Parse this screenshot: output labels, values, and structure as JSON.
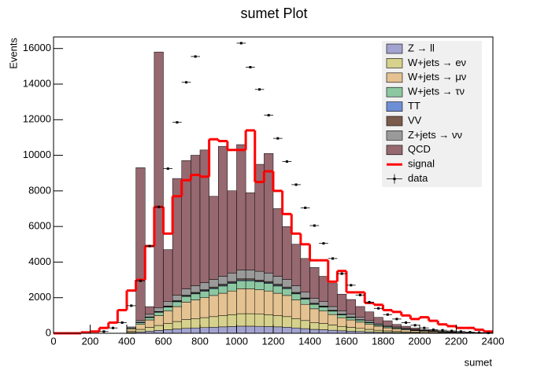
{
  "chart_data": {
    "type": "stacked-histogram",
    "title": "sumet Plot",
    "x_label": "sumet",
    "y_label": "Events",
    "bins": [
      0,
      50,
      100,
      150,
      200,
      250,
      300,
      350,
      400,
      450,
      500,
      550,
      600,
      650,
      700,
      750,
      800,
      850,
      900,
      950,
      1000,
      1050,
      1100,
      1150,
      1200,
      1250,
      1300,
      1350,
      1400,
      1450,
      1500,
      1550,
      1600,
      1650,
      1700,
      1750,
      1800,
      1850,
      1900,
      1950,
      2000,
      2050,
      2100,
      2150,
      2200,
      2250,
      2300,
      2350,
      2400
    ],
    "xlim": [
      0,
      2400
    ],
    "xticks": [
      0,
      200,
      400,
      600,
      800,
      1000,
      1200,
      1400,
      1600,
      1800,
      2000,
      2200,
      2400
    ],
    "ylim": [
      0,
      16650
    ],
    "yticks": [
      0,
      2000,
      4000,
      6000,
      8000,
      10000,
      12000,
      14000,
      16000
    ],
    "series": [
      {
        "name": "Z → ll",
        "color": "#a3a3cf",
        "values": [
          0,
          0,
          0,
          0,
          0,
          0,
          0,
          0,
          40,
          80,
          120,
          160,
          200,
          240,
          280,
          300,
          320,
          340,
          360,
          380,
          400,
          400,
          390,
          380,
          360,
          340,
          300,
          260,
          220,
          200,
          170,
          140,
          120,
          100,
          80,
          60,
          50,
          40,
          30,
          25,
          20,
          15,
          10,
          8,
          6,
          4,
          3,
          2
        ]
      },
      {
        "name": "W+jets → eν",
        "color": "#d6d18c",
        "values": [
          0,
          0,
          0,
          0,
          0,
          0,
          0,
          0,
          70,
          140,
          210,
          280,
          350,
          420,
          490,
          525,
          560,
          595,
          630,
          665,
          700,
          700,
          685,
          665,
          630,
          595,
          525,
          455,
          385,
          350,
          295,
          245,
          210,
          175,
          140,
          110,
          85,
          70,
          55,
          40,
          35,
          30,
          20,
          15,
          10,
          7,
          5,
          3
        ]
      },
      {
        "name": "W+jets → μν",
        "color": "#e4c291",
        "values": [
          0,
          0,
          0,
          0,
          0,
          0,
          0,
          0,
          140,
          280,
          420,
          560,
          700,
          840,
          980,
          1050,
          1120,
          1190,
          1260,
          1330,
          1400,
          1400,
          1370,
          1330,
          1260,
          1190,
          1050,
          910,
          770,
          700,
          590,
          490,
          420,
          350,
          280,
          225,
          170,
          140,
          110,
          85,
          70,
          55,
          40,
          30,
          20,
          15,
          10,
          7
        ]
      },
      {
        "name": "W+jets → τν",
        "color": "#8dc7a2",
        "values": [
          0,
          0,
          0,
          0,
          0,
          0,
          0,
          0,
          45,
          90,
          135,
          180,
          225,
          270,
          315,
          340,
          360,
          380,
          405,
          430,
          450,
          450,
          440,
          430,
          405,
          380,
          340,
          290,
          250,
          225,
          190,
          160,
          135,
          115,
          90,
          70,
          55,
          45,
          35,
          25,
          20,
          20,
          15,
          10,
          5,
          5,
          5,
          2
        ]
      },
      {
        "name": "TT",
        "color": "#6e8fd6",
        "values": [
          0,
          0,
          0,
          0,
          0,
          0,
          0,
          0,
          5,
          10,
          15,
          20,
          25,
          30,
          35,
          38,
          40,
          43,
          45,
          48,
          50,
          50,
          49,
          48,
          45,
          43,
          38,
          33,
          28,
          25,
          21,
          18,
          15,
          13,
          10,
          8,
          6,
          5,
          4,
          3,
          3,
          2,
          2,
          1,
          1,
          0,
          0,
          0
        ]
      },
      {
        "name": "VV",
        "color": "#7b5c4c",
        "values": [
          0,
          0,
          0,
          0,
          0,
          0,
          0,
          0,
          6,
          12,
          18,
          24,
          30,
          36,
          42,
          45,
          48,
          51,
          54,
          57,
          60,
          60,
          59,
          57,
          54,
          51,
          45,
          39,
          33,
          30,
          25,
          21,
          18,
          15,
          12,
          10,
          7,
          6,
          5,
          4,
          3,
          2,
          2,
          1,
          1,
          1,
          0,
          0
        ]
      },
      {
        "name": "Z+jets → νν",
        "color": "#9a9a9a",
        "values": [
          0,
          0,
          0,
          0,
          0,
          0,
          0,
          0,
          50,
          100,
          150,
          200,
          250,
          300,
          350,
          375,
          400,
          425,
          450,
          475,
          500,
          500,
          490,
          475,
          450,
          425,
          375,
          325,
          275,
          250,
          210,
          175,
          150,
          125,
          100,
          80,
          60,
          50,
          40,
          30,
          25,
          20,
          15,
          10,
          8,
          5,
          4,
          3
        ]
      },
      {
        "name": "QCD",
        "color": "#966870",
        "values": [
          0,
          0,
          0,
          0,
          0,
          0,
          0,
          0,
          0,
          8590,
          430,
          14380,
          2920,
          6560,
          7210,
          7330,
          7450,
          4670,
          7300,
          4620,
          7040,
          4340,
          6010,
          6720,
          3800,
          2970,
          2330,
          1890,
          1740,
          1420,
          1300,
          950,
          830,
          610,
          490,
          330,
          270,
          140,
          115,
          86,
          22,
          8,
          3,
          9,
          0,
          0,
          0,
          0
        ]
      }
    ],
    "signal": {
      "name": "signal",
      "color": "#ff0000",
      "values": [
        0,
        0,
        0,
        50,
        100,
        300,
        600,
        1300,
        2400,
        3000,
        4900,
        7100,
        5600,
        7700,
        8600,
        8900,
        8800,
        10900,
        10800,
        10300,
        10300,
        11400,
        8500,
        9100,
        8000,
        6700,
        5600,
        5000,
        4100,
        4100,
        2900,
        3500,
        2300,
        2300,
        1700,
        1600,
        1300,
        1200,
        1000,
        800,
        900,
        700,
        500,
        400,
        300,
        300,
        200,
        100
      ]
    },
    "data": {
      "name": "data",
      "color": "#000000",
      "values": [
        null,
        null,
        null,
        null,
        null,
        100,
        300,
        600,
        1550,
        2950,
        4900,
        7100,
        9250,
        11850,
        14100,
        15550,
        null,
        null,
        null,
        null,
        16300,
        14950,
        13700,
        12250,
        10950,
        9650,
        8350,
        7050,
        6050,
        5050,
        4200,
        3350,
        2700,
        2150,
        1750,
        1400,
        1050,
        800,
        600,
        450,
        300,
        200,
        170,
        130,
        100,
        60,
        40,
        20
      ]
    }
  }
}
